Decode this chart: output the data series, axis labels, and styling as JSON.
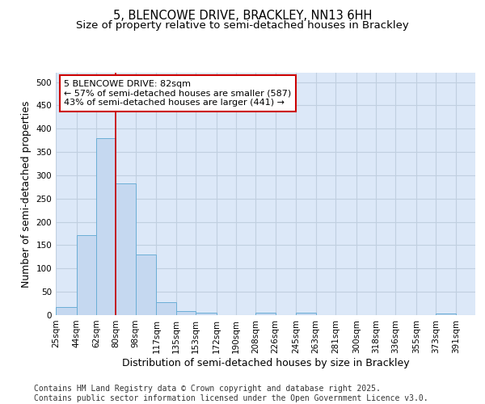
{
  "title_line1": "5, BLENCOWE DRIVE, BRACKLEY, NN13 6HH",
  "title_line2": "Size of property relative to semi-detached houses in Brackley",
  "xlabel": "Distribution of semi-detached houses by size in Brackley",
  "ylabel": "Number of semi-detached properties",
  "bar_left_edges": [
    25,
    44,
    62,
    80,
    98,
    117,
    135,
    153,
    172,
    190,
    208,
    226,
    245,
    263,
    281,
    300,
    318,
    336,
    355,
    373
  ],
  "bar_heights": [
    18,
    172,
    380,
    282,
    130,
    28,
    8,
    5,
    0,
    0,
    5,
    0,
    5,
    0,
    0,
    0,
    0,
    0,
    0,
    3
  ],
  "bar_widths": [
    19,
    18,
    18,
    18,
    19,
    18,
    18,
    19,
    18,
    18,
    18,
    19,
    18,
    18,
    19,
    18,
    18,
    19,
    18,
    18
  ],
  "tick_labels": [
    "25sqm",
    "44sqm",
    "62sqm",
    "80sqm",
    "98sqm",
    "117sqm",
    "135sqm",
    "153sqm",
    "172sqm",
    "190sqm",
    "208sqm",
    "226sqm",
    "245sqm",
    "263sqm",
    "281sqm",
    "300sqm",
    "318sqm",
    "336sqm",
    "355sqm",
    "373sqm",
    "391sqm"
  ],
  "bar_color": "#c5d8f0",
  "bar_edge_color": "#6baed6",
  "property_line_x": 80,
  "property_line_color": "#cc0000",
  "annotation_line1": "5 BLENCOWE DRIVE: 82sqm",
  "annotation_line2": "← 57% of semi-detached houses are smaller (587)",
  "annotation_line3": "43% of semi-detached houses are larger (441) →",
  "annotation_box_color": "#cc0000",
  "ylim": [
    0,
    520
  ],
  "yticks": [
    0,
    50,
    100,
    150,
    200,
    250,
    300,
    350,
    400,
    450,
    500
  ],
  "grid_color": "#c0cfe0",
  "background_color": "#dce8f8",
  "footer_text": "Contains HM Land Registry data © Crown copyright and database right 2025.\nContains public sector information licensed under the Open Government Licence v3.0.",
  "title_fontsize": 10.5,
  "subtitle_fontsize": 9.5,
  "label_fontsize": 9,
  "tick_fontsize": 7.5,
  "footer_fontsize": 7,
  "annot_fontsize": 8
}
